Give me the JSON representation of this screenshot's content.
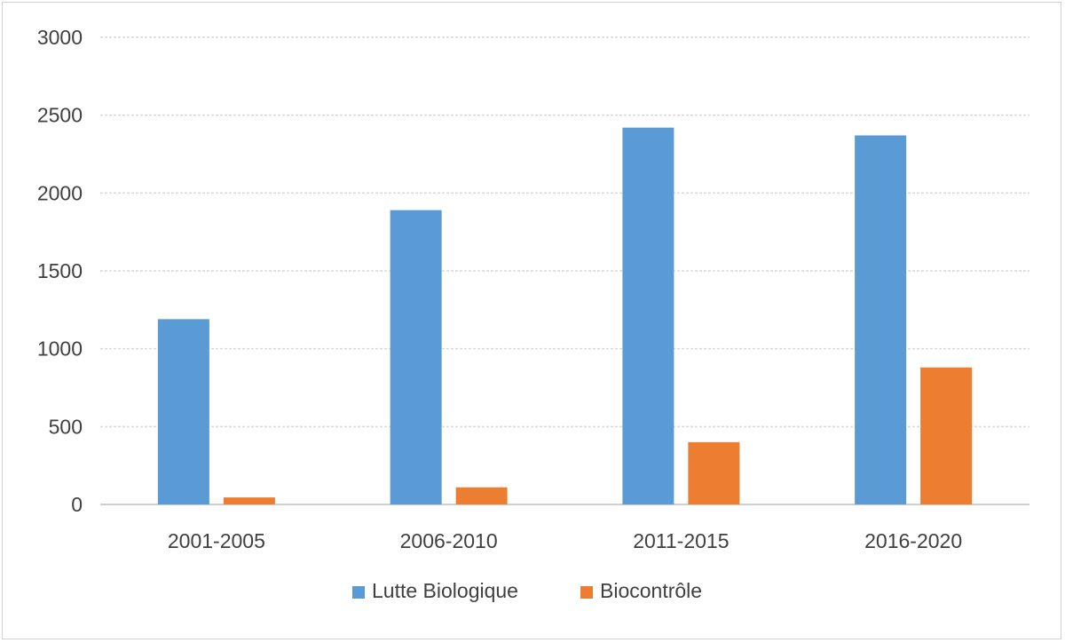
{
  "chart_data": {
    "type": "bar",
    "categories": [
      "2001-2005",
      "2006-2010",
      "2011-2015",
      "2016-2020"
    ],
    "series": [
      {
        "name": "Lutte Biologique",
        "color": "#5b9bd5",
        "values": [
          1190,
          1890,
          2420,
          2370
        ]
      },
      {
        "name": "Biocontrôle",
        "color": "#ed7d31",
        "values": [
          45,
          110,
          400,
          880
        ]
      }
    ],
    "ylim": [
      0,
      3000
    ],
    "yticks": [
      0,
      500,
      1000,
      1500,
      2000,
      2500,
      3000
    ],
    "grid": true,
    "legend_position": "bottom"
  }
}
